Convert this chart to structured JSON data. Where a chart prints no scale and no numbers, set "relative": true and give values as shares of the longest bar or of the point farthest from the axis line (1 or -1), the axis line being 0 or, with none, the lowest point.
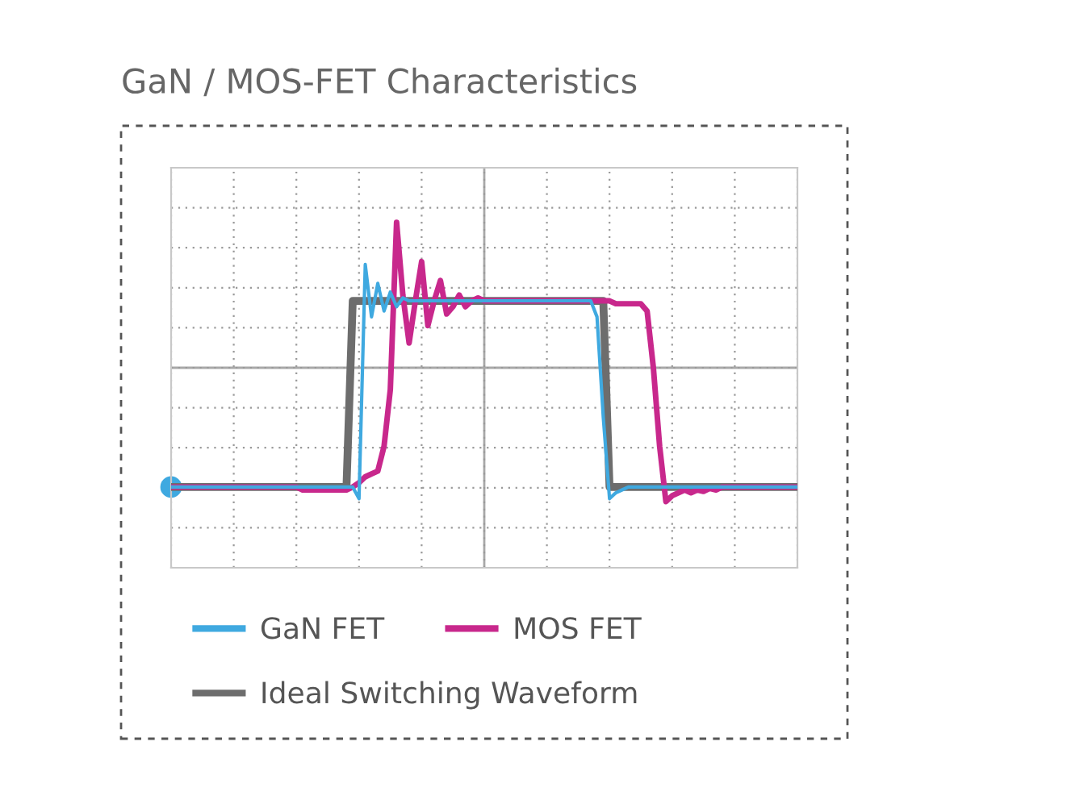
{
  "chart_data": {
    "type": "line",
    "title": "GaN / MOS-FET Characteristics",
    "relative": true,
    "grid": true,
    "legend": "bottom",
    "marker": "none",
    "line_style": "solid",
    "categories": [
      null,
      null,
      null,
      null,
      null,
      null,
      null,
      null,
      null,
      null,
      null,
      null,
      null,
      null,
      null,
      null,
      null,
      null,
      null,
      null,
      null,
      null,
      null,
      null,
      null,
      null,
      null,
      null,
      null,
      null,
      null,
      null,
      null,
      null,
      null,
      null,
      null,
      null,
      null,
      null,
      null,
      null,
      null,
      null,
      null,
      null,
      null,
      null,
      null,
      null,
      null,
      null,
      null,
      null,
      null,
      null,
      null,
      null,
      null,
      null,
      null,
      null,
      null,
      null,
      null,
      null,
      null,
      null,
      null,
      null,
      null,
      null,
      null,
      null,
      null,
      null,
      null,
      null,
      null,
      null,
      null,
      null,
      null,
      null,
      null,
      null,
      null,
      null,
      null,
      null,
      null,
      null,
      null,
      null,
      null,
      null,
      null,
      null,
      null,
      null,
      null
    ],
    "series": [
      {
        "name": "Ideal Switching Waveform",
        "color": "#6d6d6d",
        "values": [
          -0.82,
          -0.82,
          -0.82,
          -0.82,
          -0.82,
          -0.82,
          -0.82,
          -0.82,
          -0.82,
          -0.82,
          -0.82,
          -0.82,
          -0.82,
          -0.82,
          -0.82,
          -0.82,
          -0.82,
          -0.82,
          -0.82,
          -0.82,
          -0.82,
          -0.82,
          -0.82,
          -0.82,
          -0.82,
          -0.82,
          -0.82,
          -0.82,
          -0.82,
          0.46,
          0.46,
          0.46,
          0.46,
          0.46,
          0.46,
          0.46,
          0.46,
          0.46,
          0.46,
          0.46,
          0.46,
          0.46,
          0.46,
          0.46,
          0.46,
          0.46,
          0.46,
          0.46,
          0.46,
          0.46,
          0.46,
          0.46,
          0.46,
          0.46,
          0.46,
          0.46,
          0.46,
          0.46,
          0.46,
          0.46,
          0.46,
          0.46,
          0.46,
          0.46,
          0.46,
          0.46,
          0.46,
          0.46,
          0.46,
          0.46,
          -0.82,
          -0.82,
          -0.82,
          -0.82,
          -0.82,
          -0.82,
          -0.82,
          -0.82,
          -0.82,
          -0.82,
          -0.82,
          -0.82,
          -0.82,
          -0.82,
          -0.82,
          -0.82,
          -0.82,
          -0.82,
          -0.82,
          -0.82,
          -0.82,
          -0.82,
          -0.82,
          -0.82,
          -0.82,
          -0.82,
          -0.82,
          -0.82,
          -0.82,
          -0.82,
          -0.82
        ]
      },
      {
        "name": "MOS FET",
        "color": "#c8288c",
        "values": [
          -0.82,
          -0.82,
          -0.82,
          -0.82,
          -0.82,
          -0.82,
          -0.82,
          -0.82,
          -0.82,
          -0.82,
          -0.82,
          -0.82,
          -0.82,
          -0.82,
          -0.82,
          -0.82,
          -0.82,
          -0.82,
          -0.82,
          -0.82,
          -0.82,
          -0.84,
          -0.84,
          -0.84,
          -0.84,
          -0.84,
          -0.84,
          -0.84,
          -0.84,
          -0.82,
          -0.79,
          -0.75,
          -0.73,
          -0.71,
          -0.54,
          -0.15,
          1.0,
          0.5,
          0.17,
          0.46,
          0.73,
          0.29,
          0.46,
          0.6,
          0.37,
          0.42,
          0.5,
          0.42,
          0.46,
          0.48,
          0.46,
          0.46,
          0.46,
          0.46,
          0.46,
          0.46,
          0.46,
          0.46,
          0.46,
          0.46,
          0.46,
          0.46,
          0.46,
          0.46,
          0.46,
          0.46,
          0.46,
          0.46,
          0.46,
          0.46,
          0.46,
          0.44,
          0.44,
          0.44,
          0.44,
          0.44,
          0.39,
          0.0,
          -0.54,
          -0.92,
          -0.88,
          -0.86,
          -0.84,
          -0.86,
          -0.84,
          -0.85,
          -0.83,
          -0.84,
          -0.82,
          -0.82,
          -0.82,
          -0.82,
          -0.82,
          -0.82,
          -0.82,
          -0.82,
          -0.82,
          -0.82,
          -0.82,
          -0.82,
          -0.82
        ]
      },
      {
        "name": "GaN FET",
        "color": "#3fa9e0",
        "values": [
          -0.82,
          -0.82,
          -0.82,
          -0.82,
          -0.82,
          -0.82,
          -0.82,
          -0.82,
          -0.82,
          -0.82,
          -0.82,
          -0.82,
          -0.82,
          -0.82,
          -0.82,
          -0.82,
          -0.82,
          -0.82,
          -0.82,
          -0.82,
          -0.82,
          -0.82,
          -0.82,
          -0.82,
          -0.82,
          -0.82,
          -0.82,
          -0.82,
          -0.82,
          -0.82,
          -0.9,
          0.71,
          0.35,
          0.58,
          0.39,
          0.52,
          0.42,
          0.48,
          0.46,
          0.46,
          0.46,
          0.46,
          0.46,
          0.46,
          0.46,
          0.46,
          0.46,
          0.46,
          0.46,
          0.46,
          0.46,
          0.46,
          0.46,
          0.46,
          0.46,
          0.46,
          0.46,
          0.46,
          0.46,
          0.46,
          0.46,
          0.46,
          0.46,
          0.46,
          0.46,
          0.46,
          0.46,
          0.46,
          0.35,
          -0.34,
          -0.9,
          -0.86,
          -0.84,
          -0.82,
          -0.82,
          -0.82,
          -0.82,
          -0.82,
          -0.82,
          -0.82,
          -0.82,
          -0.82,
          -0.82,
          -0.82,
          -0.82,
          -0.82,
          -0.82,
          -0.82,
          -0.82,
          -0.82,
          -0.82,
          -0.82,
          -0.82,
          -0.82,
          -0.82,
          -0.82,
          -0.82,
          -0.82,
          -0.82,
          -0.82,
          -0.82
        ]
      }
    ]
  }
}
